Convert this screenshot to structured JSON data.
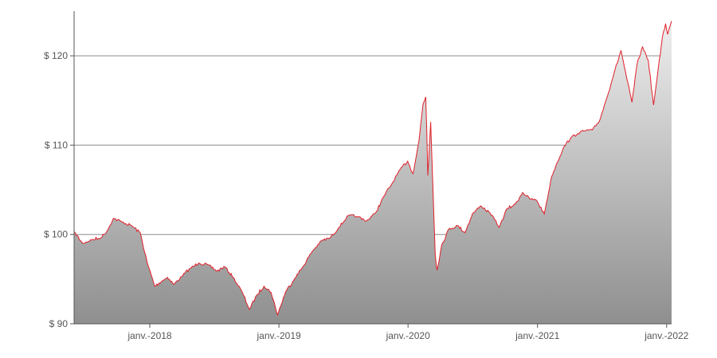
{
  "chart_data": {
    "type": "area",
    "title": "",
    "xlabel": "",
    "ylabel": "",
    "ylim": [
      90,
      125
    ],
    "xlim": [
      "2017-06-01",
      "2022-01-15"
    ],
    "grid": true,
    "y_ticks": [
      {
        "value": 90,
        "label": "$ 90"
      },
      {
        "value": 100,
        "label": "$ 100"
      },
      {
        "value": 110,
        "label": "$ 110"
      },
      {
        "value": 120,
        "label": "$ 120"
      }
    ],
    "x_ticks": [
      {
        "value": "2018-01-01",
        "label": "janv.-2018"
      },
      {
        "value": "2019-01-01",
        "label": "janv.-2019"
      },
      {
        "value": "2020-01-01",
        "label": "janv.-2020"
      },
      {
        "value": "2021-01-01",
        "label": "janv.-2021"
      },
      {
        "value": "2022-01-01",
        "label": "janv.-2022"
      }
    ],
    "colors": {
      "line": "#e0202a",
      "fill_top": "#eeeeee",
      "fill_bottom": "#8f8f8f",
      "grid": "#8c8c8c",
      "axis": "#555555",
      "text": "#555555"
    },
    "series": [
      {
        "x": [
          "2017-06-01",
          "2017-06-25",
          "2017-07-20",
          "2017-08-15",
          "2017-09-01",
          "2017-09-20",
          "2017-10-15",
          "2017-11-10",
          "2017-12-05",
          "2017-12-25",
          "2018-01-15",
          "2018-02-05",
          "2018-02-20",
          "2018-03-10",
          "2018-04-01",
          "2018-04-25",
          "2018-05-20",
          "2018-06-15",
          "2018-07-10",
          "2018-08-01",
          "2018-08-25",
          "2018-09-20",
          "2018-10-10",
          "2018-10-30",
          "2018-11-20",
          "2018-12-10",
          "2018-12-28",
          "2019-01-20",
          "2019-02-15",
          "2019-03-10",
          "2019-04-05",
          "2019-05-01",
          "2019-05-25",
          "2019-06-20",
          "2019-07-15",
          "2019-08-10",
          "2019-09-05",
          "2019-10-01",
          "2019-10-25",
          "2019-11-20",
          "2019-12-10",
          "2019-12-31",
          "2020-01-15",
          "2020-02-01",
          "2020-02-12",
          "2020-02-20",
          "2020-02-23",
          "2020-02-26",
          "2020-03-05",
          "2020-03-12",
          "2020-03-18",
          "2020-03-23",
          "2020-04-05",
          "2020-04-25",
          "2020-05-20",
          "2020-06-10",
          "2020-07-01",
          "2020-07-25",
          "2020-08-20",
          "2020-09-15",
          "2020-10-05",
          "2020-10-30",
          "2020-11-20",
          "2020-12-10",
          "2020-12-30",
          "2021-01-20",
          "2021-02-10",
          "2021-02-25",
          "2021-03-15",
          "2021-04-05",
          "2021-04-25",
          "2021-05-15",
          "2021-06-05",
          "2021-06-25",
          "2021-07-15",
          "2021-08-05",
          "2021-08-25",
          "2021-09-10",
          "2021-09-25",
          "2021-10-10",
          "2021-10-25",
          "2021-11-10",
          "2021-11-25",
          "2021-12-05",
          "2021-12-20",
          "2021-12-29",
          "2022-01-04",
          "2022-01-15"
        ],
        "values": [
          100.3,
          99.0,
          99.4,
          99.6,
          100.3,
          101.8,
          101.4,
          101.0,
          100.2,
          96.8,
          94.2,
          94.8,
          95.2,
          94.4,
          95.3,
          96.2,
          96.8,
          96.6,
          95.9,
          96.4,
          95.2,
          93.5,
          91.6,
          93.2,
          94.2,
          93.5,
          91.0,
          93.6,
          95.1,
          96.4,
          98.1,
          99.3,
          99.6,
          100.8,
          102.1,
          102.0,
          101.5,
          102.4,
          104.3,
          105.9,
          107.3,
          108.2,
          106.8,
          110.5,
          114.5,
          115.4,
          111.5,
          106.6,
          112.6,
          104.5,
          97.7,
          96.0,
          98.8,
          100.6,
          101.0,
          100.2,
          102.3,
          103.2,
          102.4,
          100.8,
          102.8,
          103.4,
          104.7,
          104.0,
          103.8,
          102.3,
          106.5,
          108.0,
          109.7,
          110.8,
          111.3,
          111.6,
          111.7,
          112.7,
          115.2,
          118.0,
          120.6,
          117.5,
          114.8,
          119.2,
          121.0,
          119.5,
          114.5,
          117.5,
          122.1,
          123.6,
          122.4,
          123.9
        ]
      }
    ]
  }
}
